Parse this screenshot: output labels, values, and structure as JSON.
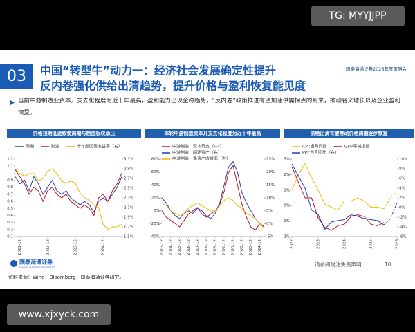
{
  "watermark": "TG: MYYJJPP",
  "section_number": "03",
  "title_lines": [
    "中国“转型牛”动力一：经济社会发展确定性提升",
    "反内卷强化供给出清趋势，提升价格与盈利恢复能见度"
  ],
  "event": "国泰海通证券2026年度策略会",
  "bullet": "当前中游制造业资本开支去化程度为近十年最高，盈利能力出现企稳趋势，“反内卷”政策推进有望加速供需拐点的到来，推动名义增长以及企业盈利恢复。",
  "chart_data": [
    {
      "type": "line",
      "title": "价格预期低迷致使周期与制造板块承压",
      "categories": [
        null,
        "2021-12",
        null,
        null,
        null,
        null,
        null,
        "2022-12",
        null,
        null,
        null,
        null,
        null,
        "2023-12",
        null,
        null,
        null,
        null,
        null,
        "2024-12",
        null,
        null,
        null,
        null
      ],
      "series": [
        {
          "name": "周期",
          "color": "#1f3ea8",
          "values": [
            0.95,
            0.85,
            0.9,
            0.75,
            0.95,
            0.85,
            0.7,
            0.8,
            0.9,
            0.75,
            0.7,
            0.75,
            0.65,
            0.6,
            0.55,
            0.6,
            0.55,
            0.45,
            0.6,
            0.65,
            0.6,
            0.7,
            0.8,
            0.95
          ]
        },
        {
          "name": "制造",
          "color": "#c0141c",
          "values": [
            1.05,
            0.95,
            0.85,
            0.7,
            0.8,
            0.75,
            0.6,
            0.75,
            0.8,
            0.7,
            0.65,
            0.7,
            0.6,
            0.55,
            0.5,
            0.55,
            0.5,
            0.4,
            0.65,
            0.7,
            0.6,
            0.75,
            0.85,
            1
          ]
        },
        {
          "name": "十年期国债收益率（右）",
          "color": "#f2b705",
          "axis": "y2",
          "values": [
            2.9,
            2.8,
            2.75,
            2.8,
            2.8,
            2.65,
            2.7,
            2.85,
            2.9,
            2.8,
            2.65,
            2.6,
            2.65,
            2.6,
            2.4,
            2.3,
            2.25,
            2.15,
            2.1,
            1.75,
            1.65,
            1.7,
            1.7,
            1.75
          ]
        }
      ],
      "ylim": [
        0.1,
        1.2
      ],
      "yticks": [
        0.1,
        0.2,
        0.3,
        0.4,
        0.5,
        0.6,
        0.7,
        0.8,
        0.9,
        1,
        1.1,
        1.2
      ],
      "y2lim": [
        1.5,
        3.1
      ],
      "y2ticks": [
        {
          "value": 1.5,
          "label": "1.5%"
        },
        {
          "value": 1.7,
          "label": "1.7%"
        },
        {
          "value": 1.9,
          "label": "1.9%"
        },
        {
          "value": 2.1,
          "label": "2.1%"
        },
        {
          "value": 2.3,
          "label": "2.3%"
        },
        {
          "value": 2.5,
          "label": "2.5%"
        },
        {
          "value": 2.7,
          "label": "2.7%"
        },
        {
          "value": 2.9,
          "label": "2.9%"
        },
        {
          "value": 3.1,
          "label": "3.1%"
        }
      ]
    },
    {
      "type": "line",
      "title": "本轮中游制造资本开支去化程度为近十年最高",
      "categories": [
        "2013-12",
        null,
        "2014-12",
        null,
        "2015-12",
        null,
        "2016-12",
        null,
        "2017-12",
        null,
        "2018-12",
        null,
        "2019-12",
        null,
        "2020-12",
        null,
        "2021-12",
        null,
        "2022-12",
        null,
        "2023-12",
        null,
        "2024-12",
        null
      ],
      "series": [
        {
          "name": "中游制造：资本开支（T-4）",
          "color": "#c0141c",
          "values": [
            0,
            -10,
            -15,
            -20,
            -25,
            -15,
            -5,
            0,
            5,
            -5,
            -10,
            -5,
            0,
            10,
            30,
            60,
            70,
            40,
            10,
            -10,
            -25,
            -30,
            -20,
            -25
          ]
        },
        {
          "name": "中游制造：固定资产（右）",
          "color": "#1f3ea8",
          "axis": "y2",
          "values": [
            10,
            8,
            5,
            3,
            2,
            4,
            5,
            4,
            6,
            5,
            3,
            2,
            4,
            8,
            15,
            22,
            24,
            20,
            12,
            8,
            5,
            2,
            0,
            -1
          ]
        },
        {
          "name": "中游制造：净资产收益率（右）",
          "color": "#f2b705",
          "axis": "y2",
          "values": [
            8,
            7,
            5,
            4,
            3,
            4,
            6,
            7,
            8,
            7,
            6,
            5,
            5,
            7,
            9,
            10,
            9,
            7,
            6,
            4,
            3,
            2,
            0,
            -2
          ]
        }
      ],
      "ylim": [
        -40,
        80
      ],
      "yticks": [
        {
          "value": -40,
          "label": "-40%"
        },
        {
          "value": -20,
          "label": "-20%"
        },
        {
          "value": 0,
          "label": "0%"
        },
        {
          "value": 20,
          "label": "20%"
        },
        {
          "value": 40,
          "label": "40%"
        },
        {
          "value": 60,
          "label": "60%"
        },
        {
          "value": 80,
          "label": "80%"
        }
      ],
      "y2lim": [
        -5,
        25
      ],
      "y2ticks": [
        {
          "value": -5,
          "label": "-5%"
        },
        {
          "value": 0,
          "label": "0%"
        },
        {
          "value": 5,
          "label": "5%"
        },
        {
          "value": 10,
          "label": "10%"
        },
        {
          "value": 15,
          "label": "15%"
        },
        {
          "value": 20,
          "label": "20%"
        },
        {
          "value": 25,
          "label": "25%"
        }
      ]
    },
    {
      "type": "line",
      "title": "供给出清有望带动价格周期逐步恢复",
      "categories": [
        "2022",
        null,
        null,
        null,
        "2023",
        null,
        null,
        null,
        "2024",
        null,
        null,
        null,
        "2025",
        null,
        null,
        null,
        "2026"
      ],
      "forecast_from": 14,
      "series": [
        {
          "name": "CPI:当月同比",
          "color": "#f2b705",
          "values": [
            1,
            2,
            2.7,
            1.8,
            1,
            0.1,
            -0.1,
            -0.3,
            0.3,
            0.3,
            0.5,
            0.3,
            -0.1,
            -0.1,
            -0.2,
            0.5,
            0.9
          ]
        },
        {
          "name": "GDP平减指数",
          "color": "#c0141c",
          "values": [
            2.5,
            1.5,
            0.5,
            0.5,
            -0.8,
            -1.4,
            -1.6,
            -1.3,
            -1.2,
            -0.7,
            -0.6,
            -0.7,
            -1.2,
            -1.3,
            -1.1,
            null,
            null
          ]
        },
        {
          "name": "PPI:当月同比（右）",
          "color": "#1f3ea8",
          "axis": "y2",
          "values": [
            9,
            6.5,
            4,
            -0.5,
            -1.5,
            -4.5,
            -3,
            -2.7,
            -2.5,
            -1.5,
            -1.8,
            -2.3,
            -2.5,
            -2.7,
            -3.6,
            -2.3,
            1
          ]
        }
      ],
      "ylim": [
        -2,
        3
      ],
      "yticks": [
        {
          "value": -2,
          "label": "-2%"
        },
        {
          "value": -1,
          "label": "-1%"
        },
        {
          "value": 0,
          "label": "0%"
        },
        {
          "value": 1,
          "label": "1%"
        },
        {
          "value": 2,
          "label": "2%"
        },
        {
          "value": 3,
          "label": "3%"
        }
      ],
      "y2lim": [
        -6,
        10
      ],
      "y2ticks": [
        {
          "value": -6,
          "label": "-6%"
        },
        {
          "value": -4,
          "label": "-4%"
        },
        {
          "value": -2,
          "label": "-2%"
        },
        {
          "value": 0,
          "label": "0%"
        },
        {
          "value": 2,
          "label": "2%"
        },
        {
          "value": 4,
          "label": "4%"
        },
        {
          "value": 6,
          "label": "6%"
        },
        {
          "value": 8,
          "label": "8%"
        },
        {
          "value": 10,
          "label": "10%"
        }
      ]
    }
  ],
  "logo": {
    "name": "国泰海通证券",
    "english": "GUOTAI HAITONG SECURITIES"
  },
  "disclaimer": "请参阅附注免费声明",
  "page_number": 10,
  "source": "资料来源：Wind，Bloomberg，国泰海通证券研究。",
  "site": "www.xjxyck.com"
}
